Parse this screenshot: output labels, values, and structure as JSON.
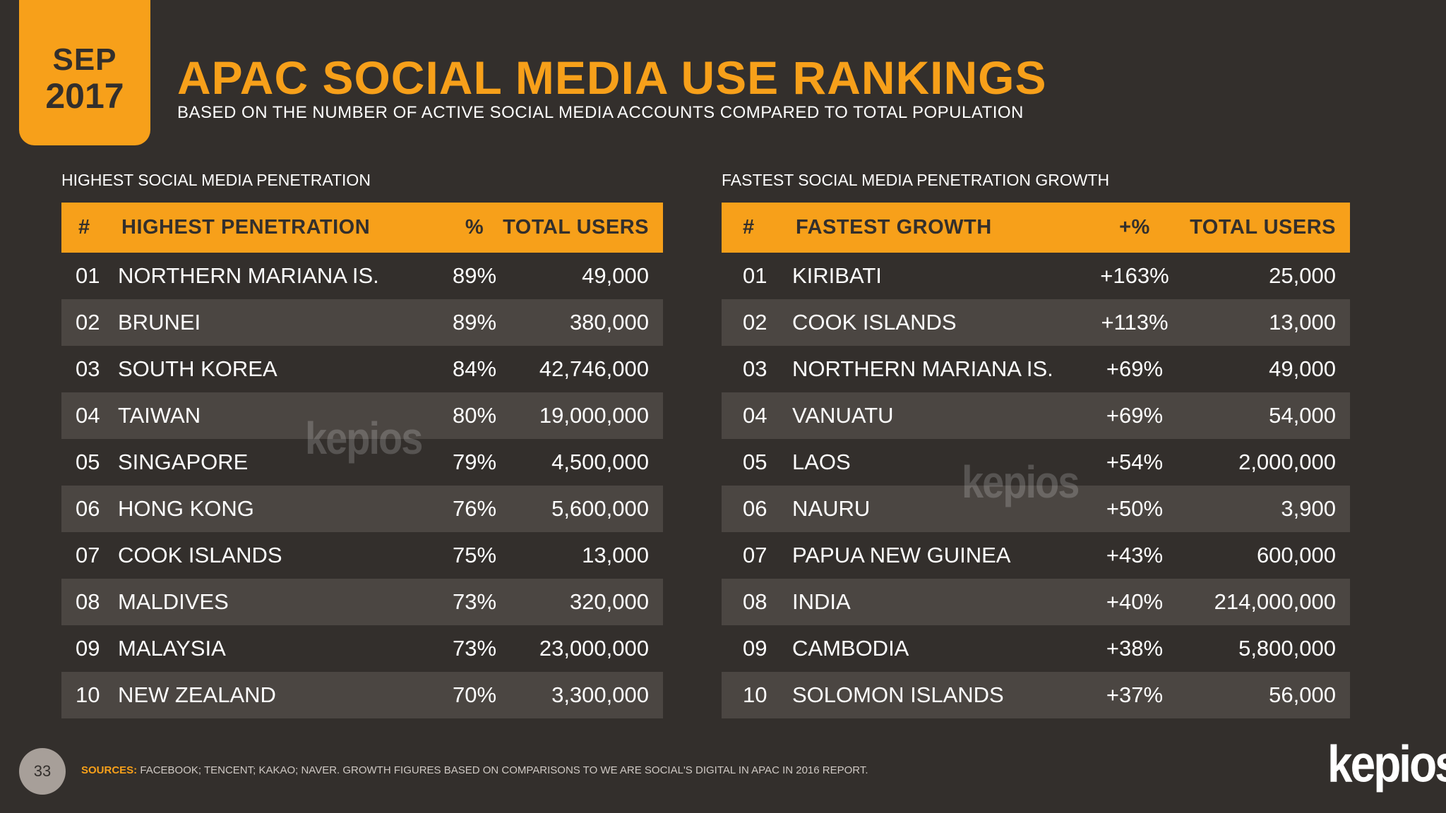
{
  "badge": {
    "month": "SEP",
    "year": "2017"
  },
  "header": {
    "title": "APAC SOCIAL MEDIA USE RANKINGS",
    "subtitle": "BASED ON THE NUMBER OF ACTIVE SOCIAL MEDIA ACCOUNTS COMPARED TO TOTAL POPULATION"
  },
  "left_table": {
    "section_label": "HIGHEST SOCIAL MEDIA PENETRATION",
    "columns": [
      "#",
      "HIGHEST PENETRATION",
      "%",
      "TOTAL USERS"
    ],
    "rows": [
      {
        "rank": "01",
        "name": "NORTHERN MARIANA IS.",
        "pct": "89%",
        "users": "49,000"
      },
      {
        "rank": "02",
        "name": "BRUNEI",
        "pct": "89%",
        "users": "380,000"
      },
      {
        "rank": "03",
        "name": "SOUTH KOREA",
        "pct": "84%",
        "users": "42,746,000"
      },
      {
        "rank": "04",
        "name": "TAIWAN",
        "pct": "80%",
        "users": "19,000,000"
      },
      {
        "rank": "05",
        "name": "SINGAPORE",
        "pct": "79%",
        "users": "4,500,000"
      },
      {
        "rank": "06",
        "name": "HONG KONG",
        "pct": "76%",
        "users": "5,600,000"
      },
      {
        "rank": "07",
        "name": "COOK ISLANDS",
        "pct": "75%",
        "users": "13,000"
      },
      {
        "rank": "08",
        "name": "MALDIVES",
        "pct": "73%",
        "users": "320,000"
      },
      {
        "rank": "09",
        "name": "MALAYSIA",
        "pct": "73%",
        "users": "23,000,000"
      },
      {
        "rank": "10",
        "name": "NEW ZEALAND",
        "pct": "70%",
        "users": "3,300,000"
      }
    ]
  },
  "right_table": {
    "section_label": "FASTEST SOCIAL MEDIA PENETRATION GROWTH",
    "columns": [
      "#",
      "FASTEST GROWTH",
      "+%",
      "TOTAL USERS"
    ],
    "rows": [
      {
        "rank": "01",
        "name": "KIRIBATI",
        "pct": "+163%",
        "users": "25,000"
      },
      {
        "rank": "02",
        "name": "COOK ISLANDS",
        "pct": "+113%",
        "users": "13,000"
      },
      {
        "rank": "03",
        "name": "NORTHERN MARIANA IS.",
        "pct": "+69%",
        "users": "49,000"
      },
      {
        "rank": "04",
        "name": "VANUATU",
        "pct": "+69%",
        "users": "54,000"
      },
      {
        "rank": "05",
        "name": "LAOS",
        "pct": "+54%",
        "users": "2,000,000"
      },
      {
        "rank": "06",
        "name": "NAURU",
        "pct": "+50%",
        "users": "3,900"
      },
      {
        "rank": "07",
        "name": "PAPUA NEW GUINEA",
        "pct": "+43%",
        "users": "600,000"
      },
      {
        "rank": "08",
        "name": "INDIA",
        "pct": "+40%",
        "users": "214,000,000"
      },
      {
        "rank": "09",
        "name": "CAMBODIA",
        "pct": "+38%",
        "users": "5,800,000"
      },
      {
        "rank": "10",
        "name": "SOLOMON ISLANDS",
        "pct": "+37%",
        "users": "56,000"
      }
    ]
  },
  "watermark_text": "kepios",
  "footer": {
    "page_number": "33",
    "sources_label": "SOURCES:",
    "sources_text": "FACEBOOK; TENCENT; KAKAO; NAVER. GROWTH FIGURES BASED ON COMPARISONS TO WE ARE SOCIAL'S DIGITAL IN APAC IN 2016 REPORT.",
    "logo": "kepios"
  },
  "colors": {
    "background": "#332f2c",
    "accent": "#f7a01a",
    "row_alt": "#4b4642"
  }
}
